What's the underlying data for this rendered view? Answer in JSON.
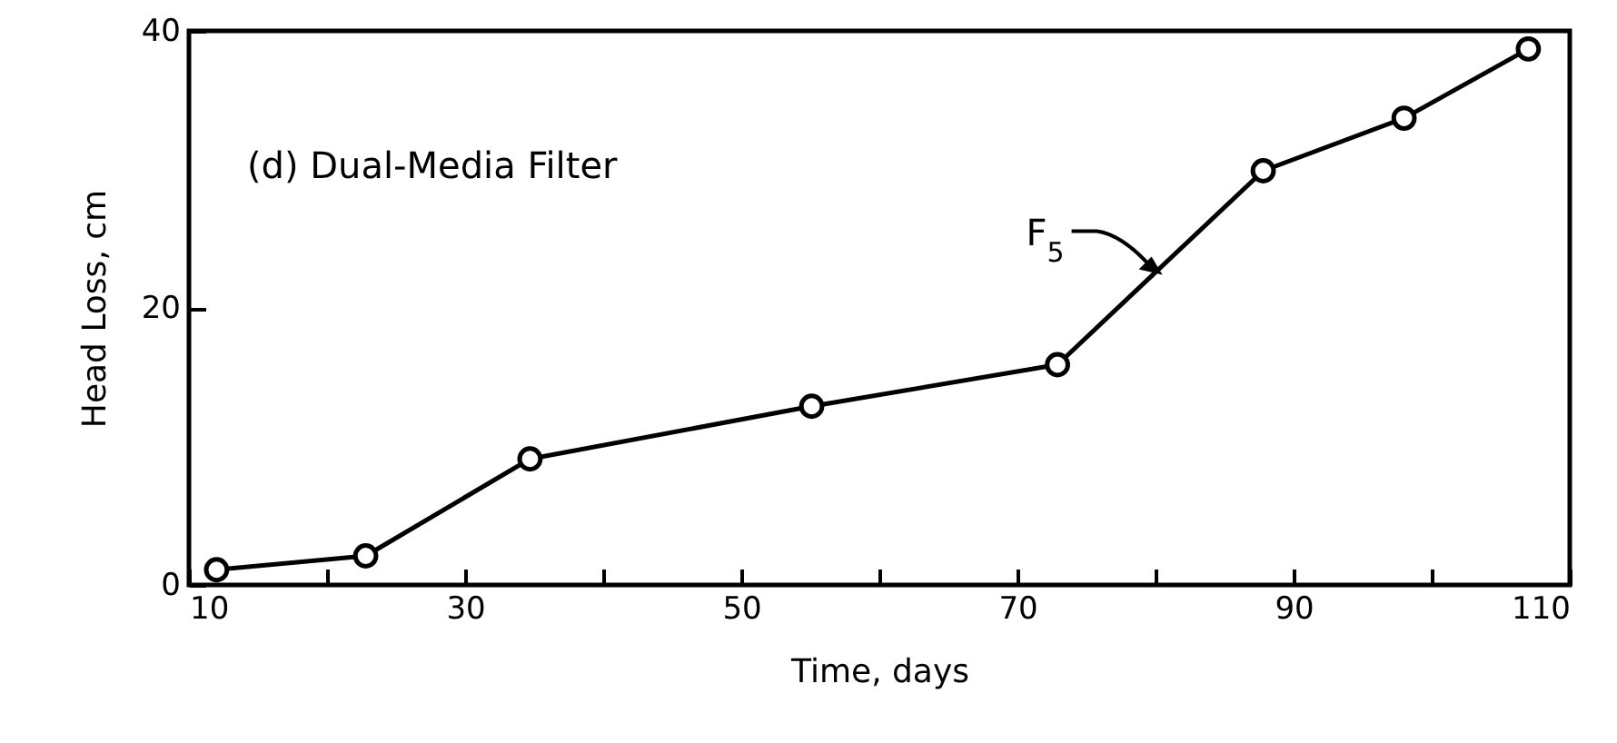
{
  "chart_data": {
    "type": "line",
    "title": "(d) Dual-Media Filter",
    "xlabel": "Time, days",
    "ylabel": "Head Loss, cm",
    "x": [
      12.0,
      22.8,
      34.7,
      55.1,
      72.9,
      87.8,
      98.0,
      107.0
    ],
    "series": [
      {
        "color": "#000000",
        "values": [
          1.1,
          2.1,
          9.1,
          12.9,
          15.9,
          29.9,
          33.7,
          38.7
        ]
      }
    ],
    "xlim": [
      10,
      110
    ],
    "xticks": [
      10,
      {
        "value": 20,
        "label": null
      },
      30,
      {
        "value": 40,
        "label": null
      },
      50,
      {
        "value": 60,
        "label": null
      },
      70,
      {
        "value": 80,
        "label": null
      },
      90,
      {
        "value": 100,
        "label": null
      },
      110
    ],
    "ylim": [
      0,
      40
    ],
    "yticks": [
      0,
      20,
      40
    ],
    "marker": "circle",
    "line_style": "solid",
    "grid": false,
    "annotations": [
      {
        "text": "F$_{5}$",
        "x": 80.5,
        "y": 22.4
      }
    ]
  }
}
